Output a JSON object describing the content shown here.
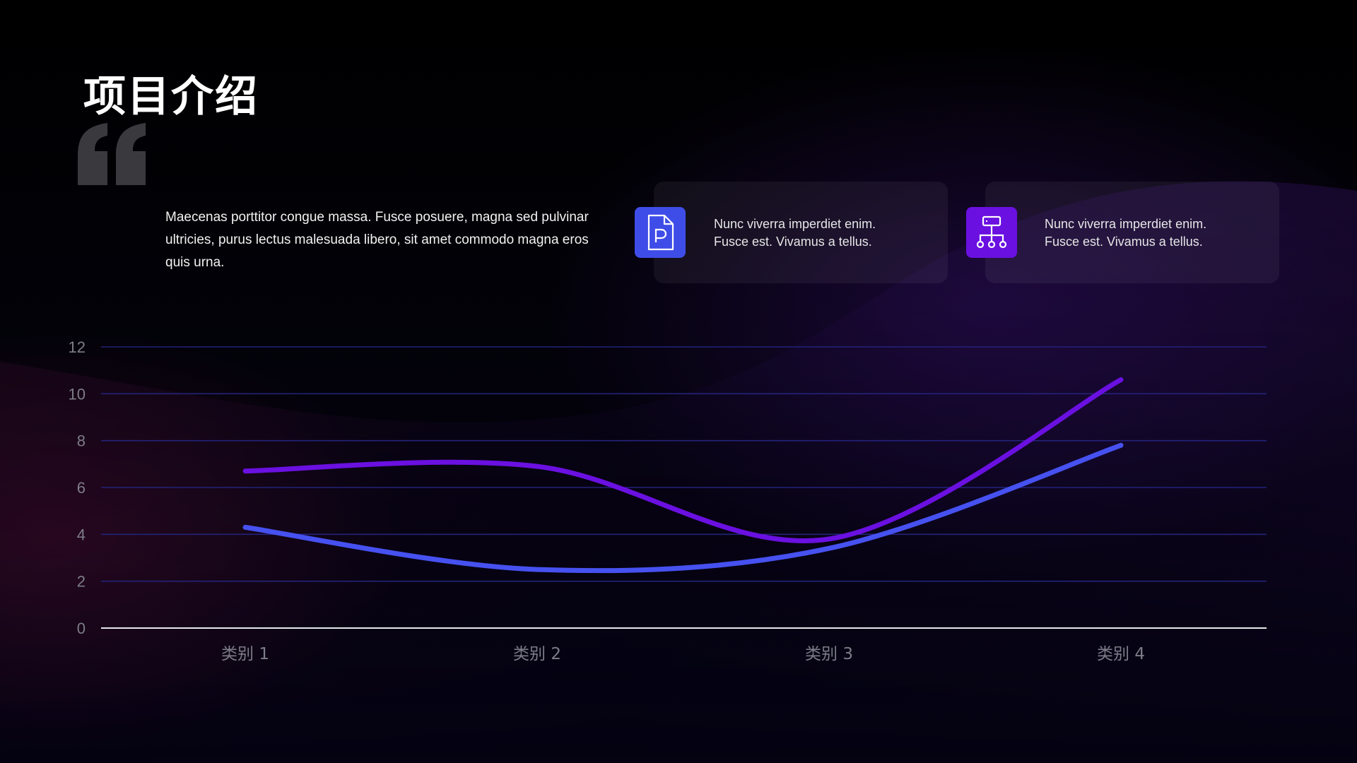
{
  "slide": {
    "title": "项目介绍",
    "body": "Maecenas porttitor congue massa. Fusce posuere, magna sed pulvinar ultricies, purus lectus malesuada libero, sit amet commodo magna eros quis urna.",
    "cards": [
      {
        "icon": "document-p-icon",
        "line1": "Nunc viverra imperdiet enim.",
        "line2": "Fusce est. Vivamus a tellus.",
        "color": "#3f4de8"
      },
      {
        "icon": "org-chart-icon",
        "line1": "Nunc viverra imperdiet enim.",
        "line2": "Fusce est. Vivamus a tellus.",
        "color": "#6a10e0"
      }
    ]
  },
  "chart_data": {
    "type": "line",
    "title": "",
    "xlabel": "",
    "ylabel": "",
    "categories": [
      "类别 1",
      "类别 2",
      "类别 3",
      "类别 4"
    ],
    "ylim": [
      0,
      12
    ],
    "yticks": [
      "0",
      "2",
      "4",
      "6",
      "8",
      "10",
      "12"
    ],
    "grid": true,
    "smooth": true,
    "legend": "none",
    "series": [
      {
        "color": "#6a10e0",
        "values": [
          6.7,
          6.9,
          3.8,
          10.6
        ]
      },
      {
        "color": "#4651f0",
        "values": [
          4.3,
          2.5,
          3.4,
          7.8
        ]
      }
    ]
  }
}
